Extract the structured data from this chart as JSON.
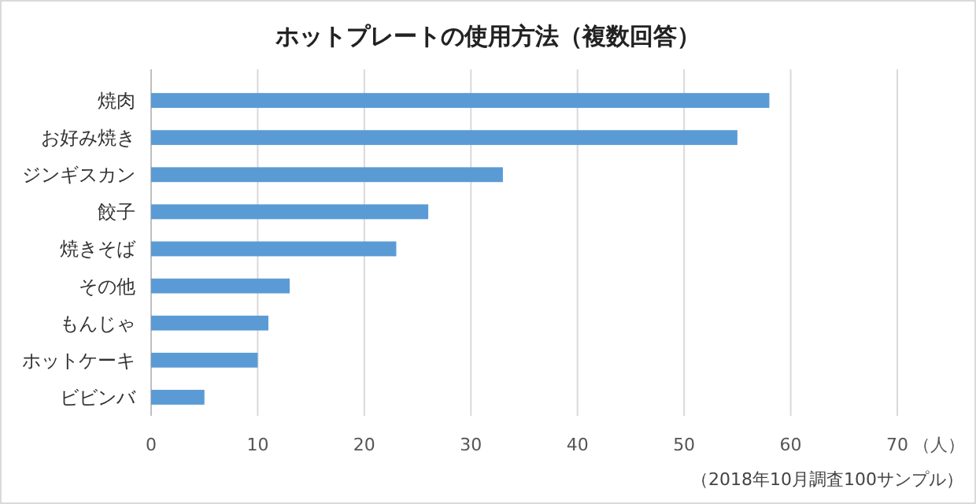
{
  "chart_data": {
    "type": "bar",
    "orientation": "horizontal",
    "title": "ホットプレートの使用方法（複数回答）",
    "categories": [
      "焼肉",
      "お好み焼き",
      "ジンギスカン",
      "餃子",
      "焼きそば",
      "その他",
      "もんじゃ",
      "ホットケーキ",
      "ビビンバ"
    ],
    "values": [
      58,
      55,
      33,
      26,
      23,
      13,
      11,
      10,
      5
    ],
    "color": "#5b9bd5",
    "xlim": [
      0,
      70
    ],
    "xticks": [
      0,
      10,
      20,
      30,
      40,
      50,
      60,
      70
    ],
    "xlabel": "（人）",
    "grid": "x",
    "annotations": [
      "（2018年10月調査100サンプル）"
    ]
  }
}
